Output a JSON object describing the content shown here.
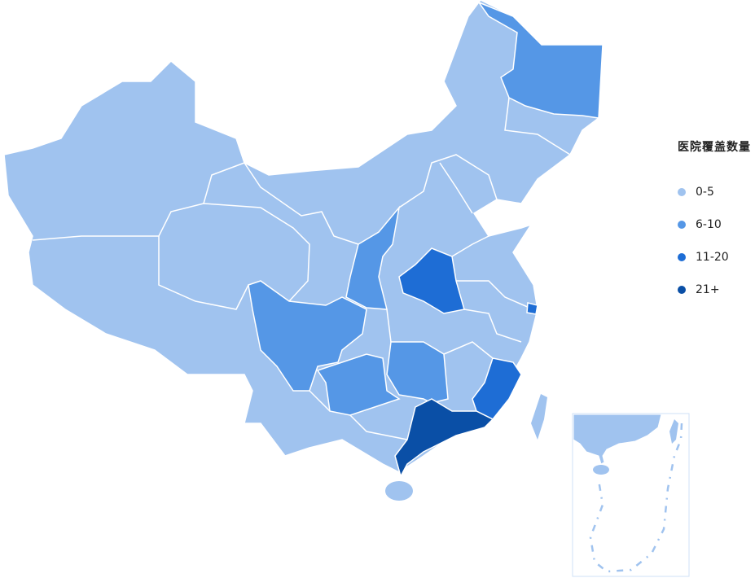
{
  "legend": {
    "title": "医院覆盖数量",
    "items": [
      {
        "label": "0-5",
        "color": "#a0c3ef"
      },
      {
        "label": "6-10",
        "color": "#5597e6"
      },
      {
        "label": "11-20",
        "color": "#1e6dd5"
      },
      {
        "label": "21+",
        "color": "#0a4fa6"
      }
    ]
  },
  "highlighted_regions": [
    {
      "region": "heilongjiang",
      "level": 1
    },
    {
      "region": "shaanxi",
      "level": 1
    },
    {
      "region": "sichuan",
      "level": 1
    },
    {
      "region": "guizhou",
      "level": 1
    },
    {
      "region": "hunan",
      "level": 1
    },
    {
      "region": "henan",
      "level": 2
    },
    {
      "region": "fujian",
      "level": 2
    },
    {
      "region": "shanghai",
      "level": 2
    },
    {
      "region": "guangdong",
      "level": 3
    }
  ],
  "inset": {
    "icon": "south-china-sea-inset"
  }
}
